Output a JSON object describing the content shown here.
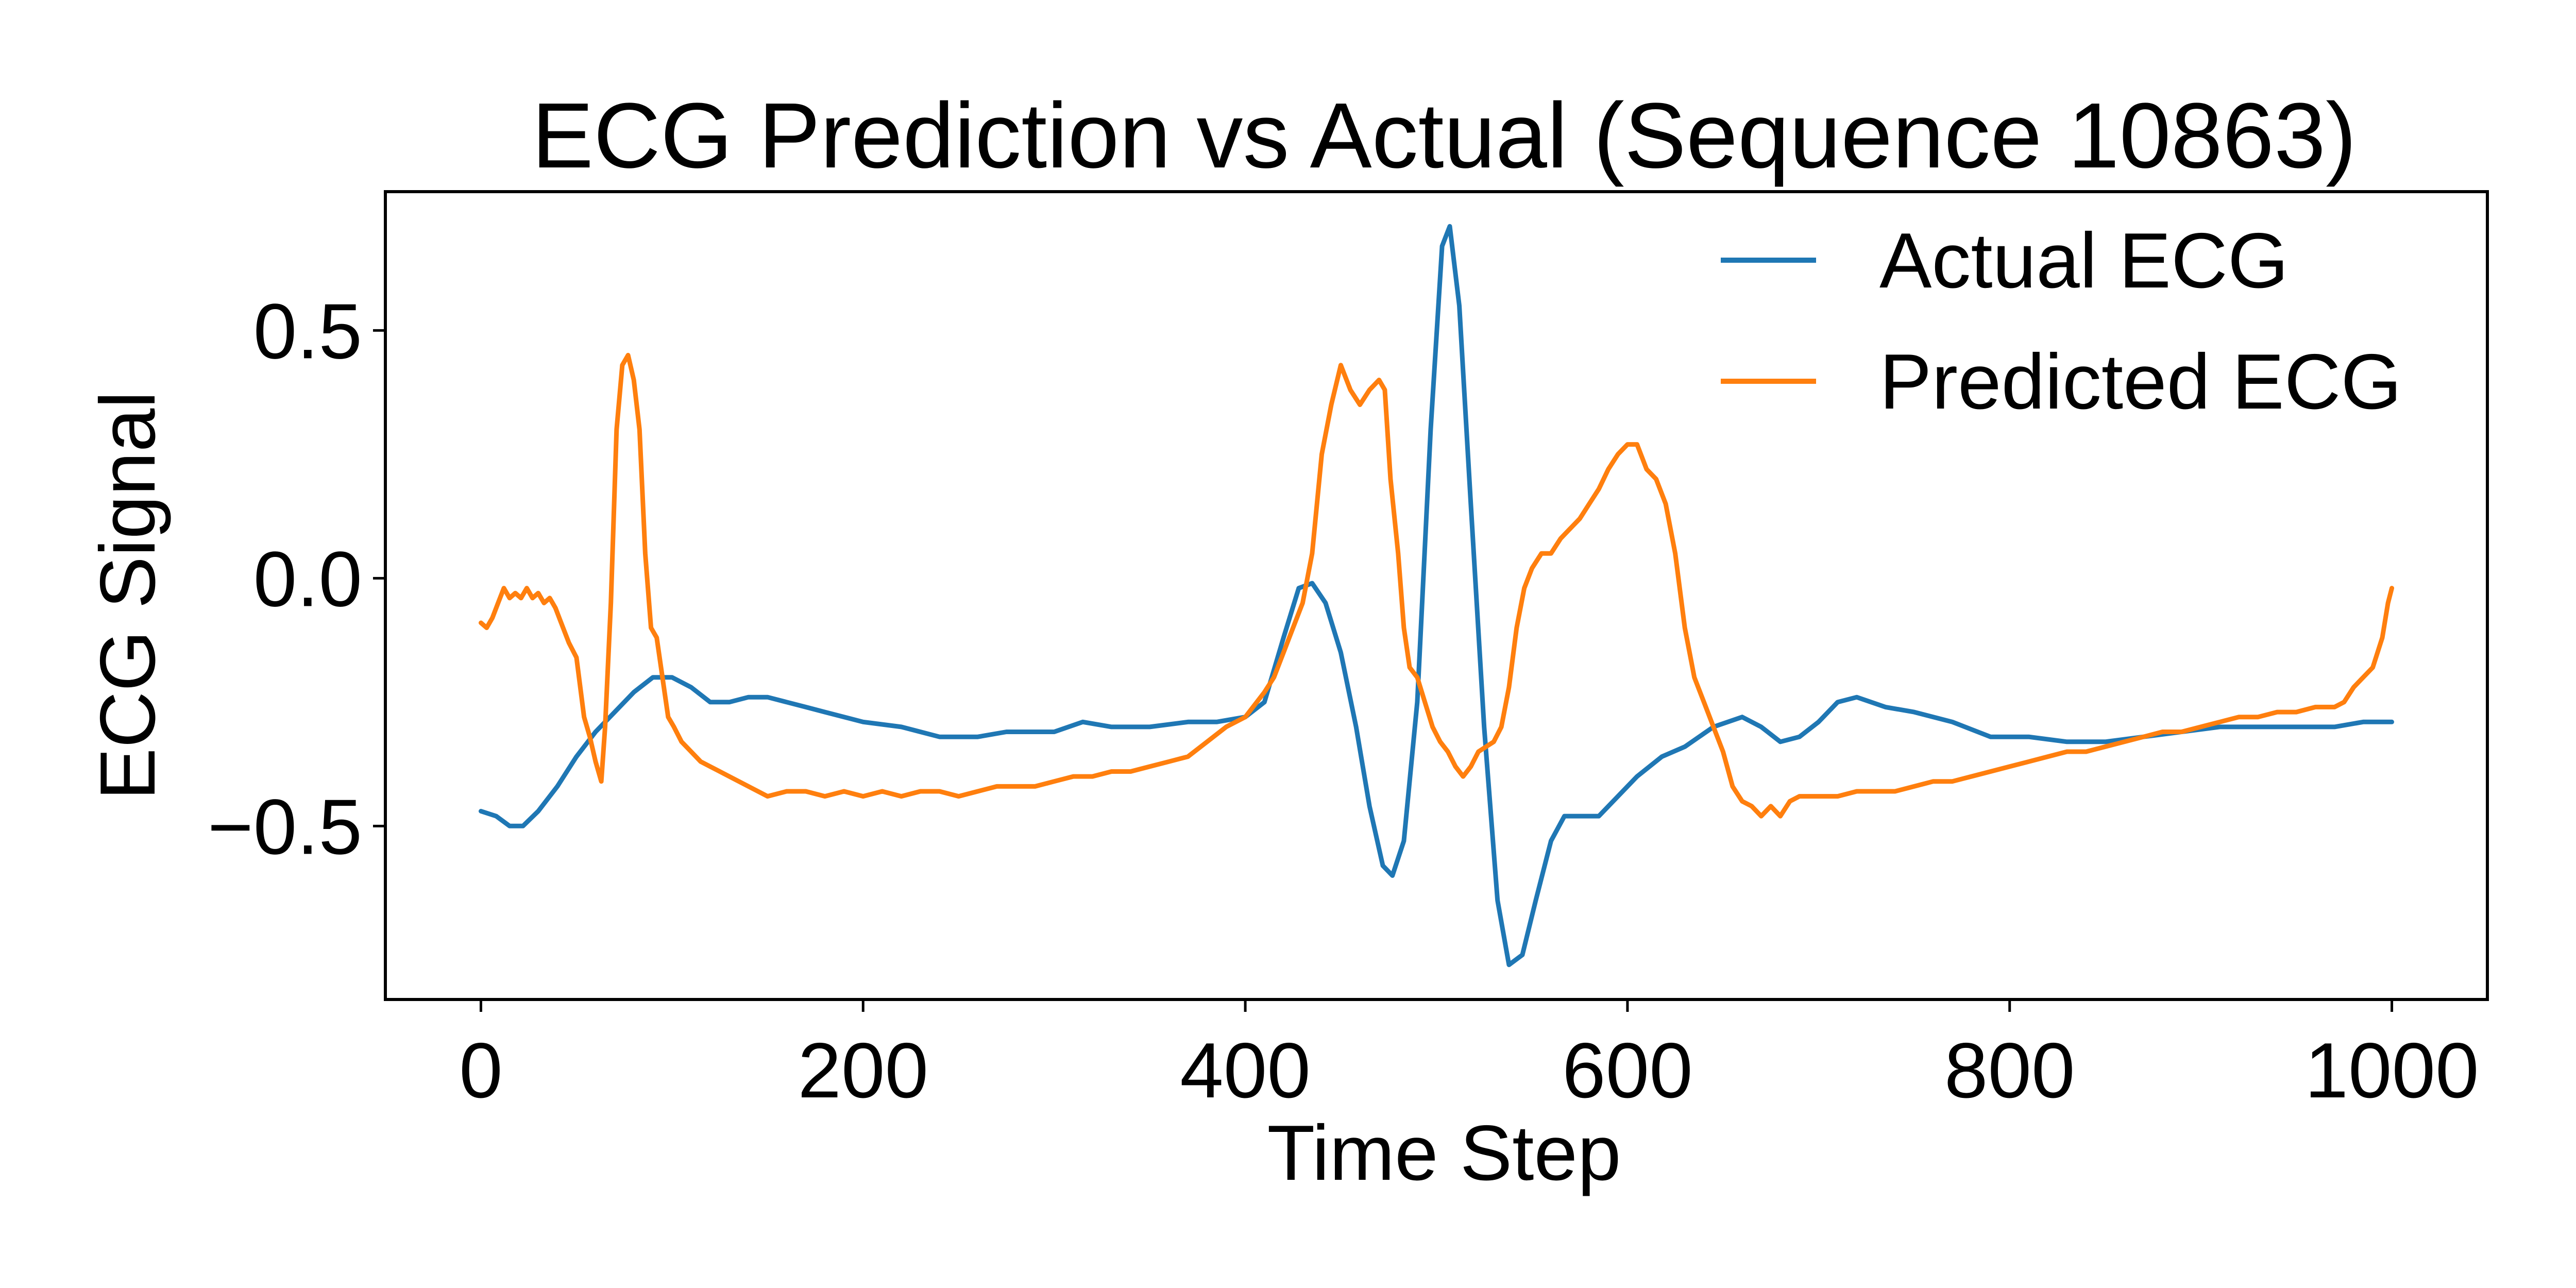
{
  "chart_data": {
    "type": "line",
    "title": "ECG Prediction vs Actual (Sequence 10863)",
    "xlabel": "Time Step",
    "ylabel": "ECG Signal",
    "xlim": [
      -50,
      1050
    ],
    "ylim": [
      -0.85,
      0.78
    ],
    "xticks": [
      0,
      200,
      400,
      600,
      800,
      1000
    ],
    "xtick_labels": [
      "0",
      "200",
      "400",
      "600",
      "800",
      "1000"
    ],
    "yticks": [
      -0.5,
      0.0,
      0.5
    ],
    "ytick_labels": [
      "−0.5",
      "0.0",
      "0.5"
    ],
    "grid": false,
    "legend_position": "top-right",
    "series": [
      {
        "name": "Actual ECG",
        "color": "#1f77b4",
        "points": [
          [
            0,
            -0.47
          ],
          [
            8,
            -0.48
          ],
          [
            15,
            -0.5
          ],
          [
            22,
            -0.5
          ],
          [
            30,
            -0.47
          ],
          [
            40,
            -0.42
          ],
          [
            50,
            -0.36
          ],
          [
            60,
            -0.31
          ],
          [
            70,
            -0.27
          ],
          [
            80,
            -0.23
          ],
          [
            90,
            -0.2
          ],
          [
            100,
            -0.2
          ],
          [
            110,
            -0.22
          ],
          [
            120,
            -0.25
          ],
          [
            130,
            -0.25
          ],
          [
            140,
            -0.24
          ],
          [
            150,
            -0.24
          ],
          [
            160,
            -0.25
          ],
          [
            170,
            -0.26
          ],
          [
            180,
            -0.27
          ],
          [
            200,
            -0.29
          ],
          [
            220,
            -0.3
          ],
          [
            240,
            -0.32
          ],
          [
            260,
            -0.32
          ],
          [
            275,
            -0.31
          ],
          [
            290,
            -0.31
          ],
          [
            300,
            -0.31
          ],
          [
            315,
            -0.29
          ],
          [
            330,
            -0.3
          ],
          [
            350,
            -0.3
          ],
          [
            370,
            -0.29
          ],
          [
            385,
            -0.29
          ],
          [
            400,
            -0.28
          ],
          [
            410,
            -0.25
          ],
          [
            420,
            -0.12
          ],
          [
            428,
            -0.02
          ],
          [
            435,
            -0.01
          ],
          [
            442,
            -0.05
          ],
          [
            450,
            -0.15
          ],
          [
            458,
            -0.3
          ],
          [
            465,
            -0.46
          ],
          [
            472,
            -0.58
          ],
          [
            477,
            -0.6
          ],
          [
            483,
            -0.53
          ],
          [
            490,
            -0.25
          ],
          [
            497,
            0.3
          ],
          [
            503,
            0.67
          ],
          [
            507,
            0.71
          ],
          [
            512,
            0.55
          ],
          [
            518,
            0.15
          ],
          [
            525,
            -0.3
          ],
          [
            532,
            -0.65
          ],
          [
            538,
            -0.78
          ],
          [
            545,
            -0.76
          ],
          [
            552,
            -0.65
          ],
          [
            560,
            -0.53
          ],
          [
            567,
            -0.48
          ],
          [
            575,
            -0.48
          ],
          [
            585,
            -0.48
          ],
          [
            595,
            -0.44
          ],
          [
            605,
            -0.4
          ],
          [
            618,
            -0.36
          ],
          [
            630,
            -0.34
          ],
          [
            645,
            -0.3
          ],
          [
            660,
            -0.28
          ],
          [
            670,
            -0.3
          ],
          [
            680,
            -0.33
          ],
          [
            690,
            -0.32
          ],
          [
            700,
            -0.29
          ],
          [
            710,
            -0.25
          ],
          [
            720,
            -0.24
          ],
          [
            735,
            -0.26
          ],
          [
            750,
            -0.27
          ],
          [
            770,
            -0.29
          ],
          [
            790,
            -0.32
          ],
          [
            810,
            -0.32
          ],
          [
            830,
            -0.33
          ],
          [
            850,
            -0.33
          ],
          [
            870,
            -0.32
          ],
          [
            890,
            -0.31
          ],
          [
            910,
            -0.3
          ],
          [
            930,
            -0.3
          ],
          [
            950,
            -0.3
          ],
          [
            970,
            -0.3
          ],
          [
            985,
            -0.29
          ],
          [
            1000,
            -0.29
          ]
        ]
      },
      {
        "name": "Predicted ECG",
        "color": "#ff7f0e",
        "points": [
          [
            0,
            -0.09
          ],
          [
            3,
            -0.1
          ],
          [
            6,
            -0.08
          ],
          [
            9,
            -0.05
          ],
          [
            12,
            -0.02
          ],
          [
            15,
            -0.04
          ],
          [
            18,
            -0.03
          ],
          [
            21,
            -0.04
          ],
          [
            24,
            -0.02
          ],
          [
            27,
            -0.04
          ],
          [
            30,
            -0.03
          ],
          [
            33,
            -0.05
          ],
          [
            36,
            -0.04
          ],
          [
            39,
            -0.06
          ],
          [
            42,
            -0.09
          ],
          [
            46,
            -0.13
          ],
          [
            50,
            -0.16
          ],
          [
            54,
            -0.28
          ],
          [
            57,
            -0.32
          ],
          [
            60,
            -0.37
          ],
          [
            63,
            -0.41
          ],
          [
            65,
            -0.3
          ],
          [
            68,
            -0.05
          ],
          [
            71,
            0.3
          ],
          [
            74,
            0.43
          ],
          [
            77,
            0.45
          ],
          [
            80,
            0.4
          ],
          [
            83,
            0.3
          ],
          [
            86,
            0.05
          ],
          [
            89,
            -0.1
          ],
          [
            92,
            -0.12
          ],
          [
            95,
            -0.2
          ],
          [
            98,
            -0.28
          ],
          [
            101,
            -0.3
          ],
          [
            105,
            -0.33
          ],
          [
            110,
            -0.35
          ],
          [
            115,
            -0.37
          ],
          [
            120,
            -0.38
          ],
          [
            130,
            -0.4
          ],
          [
            140,
            -0.42
          ],
          [
            150,
            -0.44
          ],
          [
            160,
            -0.43
          ],
          [
            170,
            -0.43
          ],
          [
            180,
            -0.44
          ],
          [
            190,
            -0.43
          ],
          [
            200,
            -0.44
          ],
          [
            210,
            -0.43
          ],
          [
            220,
            -0.44
          ],
          [
            230,
            -0.43
          ],
          [
            240,
            -0.43
          ],
          [
            250,
            -0.44
          ],
          [
            260,
            -0.43
          ],
          [
            270,
            -0.42
          ],
          [
            280,
            -0.42
          ],
          [
            290,
            -0.42
          ],
          [
            300,
            -0.41
          ],
          [
            310,
            -0.4
          ],
          [
            320,
            -0.4
          ],
          [
            330,
            -0.39
          ],
          [
            340,
            -0.39
          ],
          [
            350,
            -0.38
          ],
          [
            360,
            -0.37
          ],
          [
            370,
            -0.36
          ],
          [
            380,
            -0.33
          ],
          [
            390,
            -0.3
          ],
          [
            400,
            -0.28
          ],
          [
            410,
            -0.23
          ],
          [
            415,
            -0.2
          ],
          [
            420,
            -0.15
          ],
          [
            425,
            -0.1
          ],
          [
            430,
            -0.05
          ],
          [
            435,
            0.05
          ],
          [
            440,
            0.25
          ],
          [
            445,
            0.35
          ],
          [
            450,
            0.43
          ],
          [
            455,
            0.38
          ],
          [
            460,
            0.35
          ],
          [
            465,
            0.38
          ],
          [
            470,
            0.4
          ],
          [
            473,
            0.38
          ],
          [
            476,
            0.2
          ],
          [
            480,
            0.05
          ],
          [
            483,
            -0.1
          ],
          [
            486,
            -0.18
          ],
          [
            490,
            -0.2
          ],
          [
            494,
            -0.25
          ],
          [
            498,
            -0.3
          ],
          [
            502,
            -0.33
          ],
          [
            506,
            -0.35
          ],
          [
            510,
            -0.38
          ],
          [
            514,
            -0.4
          ],
          [
            518,
            -0.38
          ],
          [
            522,
            -0.35
          ],
          [
            526,
            -0.34
          ],
          [
            530,
            -0.33
          ],
          [
            534,
            -0.3
          ],
          [
            538,
            -0.22
          ],
          [
            542,
            -0.1
          ],
          [
            546,
            -0.02
          ],
          [
            550,
            0.02
          ],
          [
            555,
            0.05
          ],
          [
            560,
            0.05
          ],
          [
            565,
            0.08
          ],
          [
            570,
            0.1
          ],
          [
            575,
            0.12
          ],
          [
            580,
            0.15
          ],
          [
            585,
            0.18
          ],
          [
            590,
            0.22
          ],
          [
            595,
            0.25
          ],
          [
            600,
            0.27
          ],
          [
            605,
            0.27
          ],
          [
            610,
            0.22
          ],
          [
            615,
            0.2
          ],
          [
            620,
            0.15
          ],
          [
            625,
            0.05
          ],
          [
            630,
            -0.1
          ],
          [
            635,
            -0.2
          ],
          [
            640,
            -0.25
          ],
          [
            645,
            -0.3
          ],
          [
            650,
            -0.35
          ],
          [
            655,
            -0.42
          ],
          [
            660,
            -0.45
          ],
          [
            665,
            -0.46
          ],
          [
            670,
            -0.48
          ],
          [
            675,
            -0.46
          ],
          [
            680,
            -0.48
          ],
          [
            685,
            -0.45
          ],
          [
            690,
            -0.44
          ],
          [
            700,
            -0.44
          ],
          [
            710,
            -0.44
          ],
          [
            720,
            -0.43
          ],
          [
            730,
            -0.43
          ],
          [
            740,
            -0.43
          ],
          [
            750,
            -0.42
          ],
          [
            760,
            -0.41
          ],
          [
            770,
            -0.41
          ],
          [
            780,
            -0.4
          ],
          [
            790,
            -0.39
          ],
          [
            800,
            -0.38
          ],
          [
            810,
            -0.37
          ],
          [
            820,
            -0.36
          ],
          [
            830,
            -0.35
          ],
          [
            840,
            -0.35
          ],
          [
            850,
            -0.34
          ],
          [
            860,
            -0.33
          ],
          [
            870,
            -0.32
          ],
          [
            880,
            -0.31
          ],
          [
            890,
            -0.31
          ],
          [
            900,
            -0.3
          ],
          [
            910,
            -0.29
          ],
          [
            920,
            -0.28
          ],
          [
            930,
            -0.28
          ],
          [
            940,
            -0.27
          ],
          [
            950,
            -0.27
          ],
          [
            960,
            -0.26
          ],
          [
            970,
            -0.26
          ],
          [
            975,
            -0.25
          ],
          [
            980,
            -0.22
          ],
          [
            985,
            -0.2
          ],
          [
            990,
            -0.18
          ],
          [
            995,
            -0.12
          ],
          [
            998,
            -0.05
          ],
          [
            1000,
            -0.02
          ]
        ]
      }
    ]
  }
}
